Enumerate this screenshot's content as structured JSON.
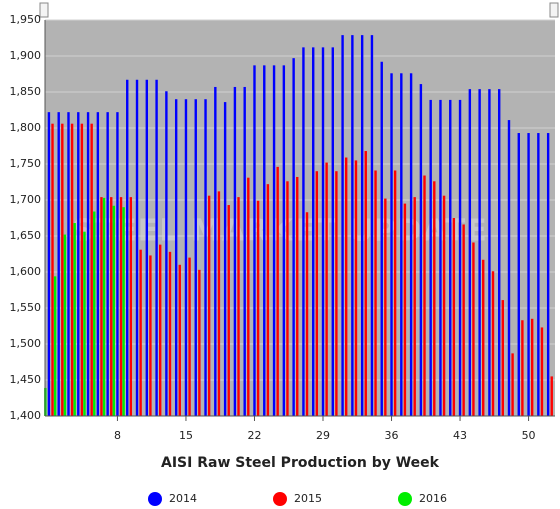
{
  "chart_data": {
    "type": "bar",
    "title": "AISI Raw Steel Production by Week",
    "watermark": "STEEL MARKET UPDATE",
    "x": [
      1,
      2,
      3,
      4,
      5,
      6,
      7,
      8,
      9,
      10,
      11,
      12,
      13,
      14,
      15,
      16,
      17,
      18,
      19,
      20,
      21,
      22,
      23,
      24,
      25,
      26,
      27,
      28,
      29,
      30,
      31,
      32,
      33,
      34,
      35,
      36,
      37,
      38,
      39,
      40,
      41,
      42,
      43,
      44,
      45,
      46,
      47,
      48,
      49,
      50,
      51,
      52
    ],
    "xlim": [
      0.6,
      52.7
    ],
    "xticks": [
      8,
      15,
      22,
      29,
      36,
      43,
      50
    ],
    "ylim": [
      1400,
      1950
    ],
    "yticks": [
      {
        "value": 1400,
        "label": "1,400"
      },
      {
        "value": 1450,
        "label": "1,450"
      },
      {
        "value": 1500,
        "label": "1,500"
      },
      {
        "value": 1550,
        "label": "1,550"
      },
      {
        "value": 1600,
        "label": "1,600"
      },
      {
        "value": 1650,
        "label": "1,650"
      },
      {
        "value": 1700,
        "label": "1,700"
      },
      {
        "value": 1750,
        "label": "1,750"
      },
      {
        "value": 1800,
        "label": "1,800"
      },
      {
        "value": 1850,
        "label": "1,850"
      },
      {
        "value": 1900,
        "label": "1,900"
      },
      {
        "value": 1950,
        "label": "1,950"
      }
    ],
    "grid": true,
    "legend": "bottom",
    "series": [
      {
        "name": "2014",
        "color": "#0000ff",
        "values": [
          1822,
          1822,
          1822,
          1822,
          1822,
          1822,
          1822,
          1822,
          1867,
          1867,
          1867,
          1867,
          1851,
          1840,
          1840,
          1840,
          1840,
          1857,
          1836,
          1857,
          1857,
          1887,
          1887,
          1887,
          1887,
          1897,
          1912,
          1912,
          1912,
          1912,
          1929,
          1929,
          1929,
          1929,
          1892,
          1876,
          1876,
          1876,
          1861,
          1839,
          1839,
          1839,
          1839,
          1854,
          1854,
          1854,
          1854,
          1811,
          1793,
          1793,
          1793,
          1793
        ]
      },
      {
        "name": "2015",
        "color": "#ff0000",
        "values": [
          1806,
          1806,
          1806,
          1806,
          1806,
          1704,
          1704,
          1704,
          1704,
          1631,
          1623,
          1638,
          1628,
          1610,
          1620,
          1603,
          1706,
          1712,
          1693,
          1704,
          1731,
          1699,
          1722,
          1746,
          1726,
          1732,
          1683,
          1740,
          1752,
          1740,
          1759,
          1755,
          1768,
          1741,
          1702,
          1741,
          1695,
          1704,
          1734,
          1726,
          1706,
          1675,
          1666,
          1641,
          1617,
          1601,
          1561,
          1487,
          1533,
          1535,
          1523,
          1455
        ]
      },
      {
        "name": "2016",
        "color": "#00ee00",
        "values": [
          1439,
          1594,
          1652,
          1668,
          1656,
          1684,
          1703,
          1692,
          1690,
          null,
          null,
          null,
          null,
          null,
          null,
          null,
          null,
          null,
          null,
          null,
          null,
          null,
          null,
          null,
          null,
          null,
          null,
          null,
          null,
          null,
          null,
          null,
          null,
          null,
          null,
          null,
          null,
          null,
          null,
          null,
          null,
          null,
          null,
          null,
          null,
          null,
          null,
          null,
          null,
          null,
          null,
          null
        ]
      }
    ]
  }
}
